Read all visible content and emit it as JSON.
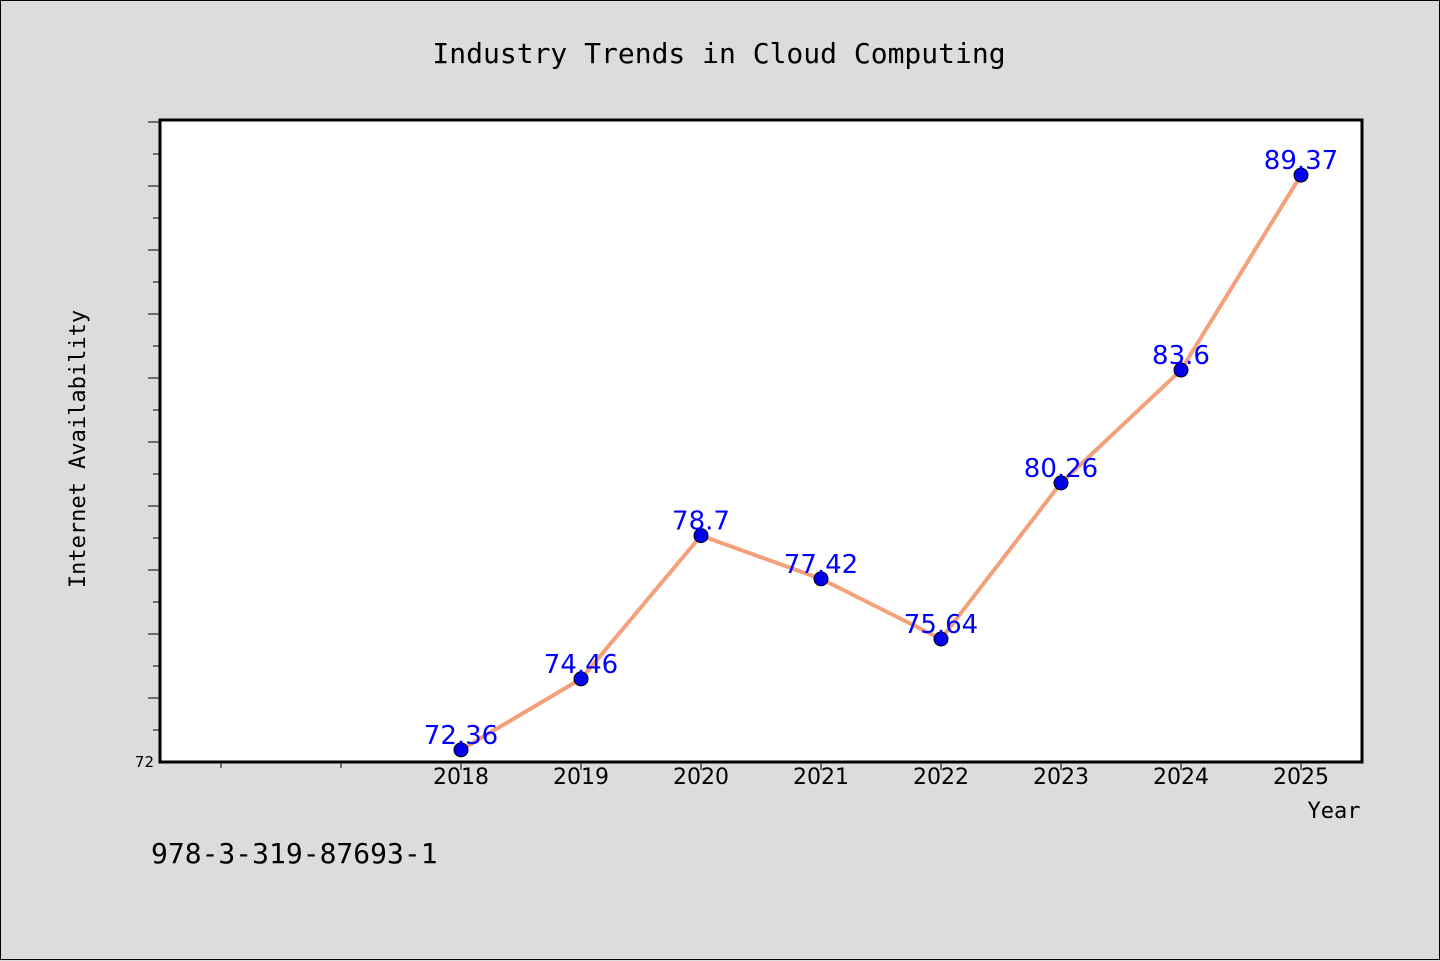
{
  "chart_data": {
    "type": "line",
    "title": "Industry Trends in Cloud Computing",
    "xlabel": "Year",
    "ylabel": "Internet Availability",
    "x": [
      "2018",
      "2019",
      "2020",
      "2021",
      "2022",
      "2023",
      "2024",
      "2025"
    ],
    "series": [
      {
        "values": [
          72.36,
          74.46,
          78.7,
          77.42,
          75.64,
          80.26,
          83.6,
          89.37
        ],
        "line_color": "#f4a07a",
        "marker_color": "#0000ee",
        "label_color": "#0000ff"
      }
    ],
    "data_labels": [
      "72.36",
      "74.46",
      "78.7",
      "77.42",
      "75.64",
      "80.26",
      "83.6",
      "89.37"
    ],
    "ylim": [
      72,
      91.0
    ],
    "yticks_labeled": [
      "72"
    ],
    "grid": false,
    "legend": "none"
  },
  "footnote": "978-3-319-87693-1",
  "colors": {
    "figure_background": "#dcdcdc",
    "plot_background": "#ffffff"
  }
}
